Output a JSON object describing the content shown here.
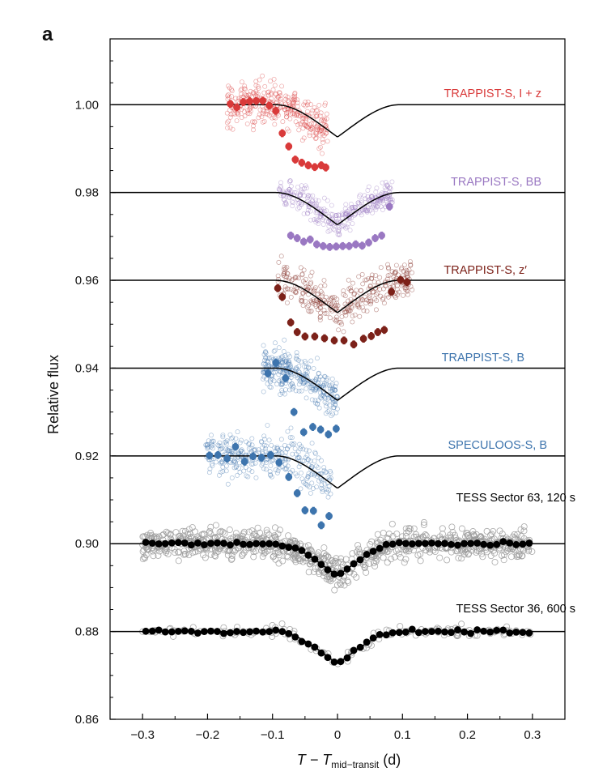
{
  "panel_label": "a",
  "chart_data": {
    "type": "scatter",
    "title": "",
    "xlabel": {
      "prefix": "T − T",
      "subscript": "mid−transit",
      "suffix": " (d)"
    },
    "ylabel": "Relative flux",
    "xlim": [
      -0.35,
      0.35
    ],
    "ylim": [
      0.86,
      1.015
    ],
    "xticks": [
      -0.3,
      -0.2,
      -0.1,
      0,
      0.1,
      0.2,
      0.3
    ],
    "xtick_labels": [
      "−0.3",
      "−0.2",
      "−0.1",
      "0",
      "0.1",
      "0.2",
      "0.3"
    ],
    "yticks": [
      0.86,
      0.88,
      0.9,
      0.92,
      0.94,
      0.96,
      0.98,
      1.0
    ],
    "ytick_labels": [
      "0.86",
      "0.88",
      "0.90",
      "0.92",
      "0.94",
      "0.96",
      "0.98",
      "1.00"
    ],
    "grid": false,
    "transit_model": {
      "t1": -0.095,
      "t2": -0.07,
      "t3": 0.07,
      "t4": 0.095,
      "depth": 0.0135,
      "limb_bow": 0.0015
    },
    "series": [
      {
        "name": "TRAPPIST-S, I + z",
        "color": "#d93a3a",
        "offset": 1.0,
        "raw_xrange": [
          -0.17,
          -0.015
        ],
        "raw_scatter": 0.0035,
        "binned": [
          [
            -0.165,
            1.0002
          ],
          [
            -0.155,
            0.9994
          ],
          [
            -0.145,
            1.0006
          ],
          [
            -0.135,
            1.0008
          ],
          [
            -0.125,
            1.0009
          ],
          [
            -0.115,
            1.0009
          ],
          [
            -0.105,
            0.9998
          ],
          [
            -0.095,
            0.9986
          ],
          [
            -0.085,
            0.9935
          ],
          [
            -0.075,
            0.9905
          ],
          [
            -0.065,
            0.9875
          ],
          [
            -0.055,
            0.9868
          ],
          [
            -0.045,
            0.9862
          ],
          [
            -0.035,
            0.9858
          ],
          [
            -0.025,
            0.9862
          ],
          [
            -0.018,
            0.9857
          ]
        ]
      },
      {
        "name": "TRAPPIST-S, BB",
        "color": "#9a78c2",
        "offset": 0.98,
        "raw_xrange": [
          -0.09,
          0.085
        ],
        "raw_scatter": 0.0022,
        "binned": [
          [
            -0.072,
            0.9702
          ],
          [
            -0.062,
            0.9696
          ],
          [
            -0.052,
            0.9688
          ],
          [
            -0.042,
            0.9693
          ],
          [
            -0.032,
            0.9682
          ],
          [
            -0.022,
            0.9678
          ],
          [
            -0.012,
            0.9676
          ],
          [
            -0.002,
            0.9677
          ],
          [
            0.008,
            0.9678
          ],
          [
            0.018,
            0.9678
          ],
          [
            0.028,
            0.9682
          ],
          [
            0.038,
            0.9679
          ],
          [
            0.048,
            0.9686
          ],
          [
            0.058,
            0.9696
          ],
          [
            0.068,
            0.9702
          ],
          [
            0.08,
            0.9768
          ]
        ]
      },
      {
        "name": "TRAPPIST-S, z′",
        "color": "#7c2119",
        "offset": 0.96,
        "raw_xrange": [
          -0.092,
          0.115
        ],
        "raw_scatter": 0.0032,
        "binned": [
          [
            -0.092,
            0.9582
          ],
          [
            -0.085,
            0.9562
          ],
          [
            -0.072,
            0.9504
          ],
          [
            -0.062,
            0.9482
          ],
          [
            -0.05,
            0.9472
          ],
          [
            -0.035,
            0.9472
          ],
          [
            -0.02,
            0.9468
          ],
          [
            -0.005,
            0.9463
          ],
          [
            0.01,
            0.9463
          ],
          [
            0.025,
            0.9454
          ],
          [
            0.04,
            0.9467
          ],
          [
            0.052,
            0.9473
          ],
          [
            0.062,
            0.9482
          ],
          [
            0.072,
            0.9487
          ],
          [
            0.083,
            0.9574
          ],
          [
            0.097,
            0.9601
          ],
          [
            0.107,
            0.9596
          ]
        ]
      },
      {
        "name": "TRAPPIST-S, B",
        "color": "#3d74ad",
        "offset": 0.94,
        "raw_xrange": [
          -0.115,
          0.0
        ],
        "raw_scatter": 0.0032,
        "binned": [
          [
            -0.107,
            0.9388
          ],
          [
            -0.095,
            0.9412
          ],
          [
            -0.08,
            0.9377
          ],
          [
            -0.067,
            0.93
          ],
          [
            -0.052,
            0.9254
          ],
          [
            -0.038,
            0.9266
          ],
          [
            -0.026,
            0.926
          ],
          [
            -0.014,
            0.9249
          ],
          [
            -0.002,
            0.9262
          ]
        ]
      },
      {
        "name": "SPECULOOS-S, B",
        "color": "#3d74ad",
        "offset": 0.92,
        "raw_xrange": [
          -0.205,
          -0.01
        ],
        "raw_scatter": 0.0035,
        "binned": [
          [
            -0.197,
            0.9201
          ],
          [
            -0.184,
            0.9202
          ],
          [
            -0.17,
            0.9194
          ],
          [
            -0.157,
            0.9221
          ],
          [
            -0.143,
            0.9187
          ],
          [
            -0.13,
            0.9199
          ],
          [
            -0.117,
            0.9196
          ],
          [
            -0.103,
            0.9202
          ],
          [
            -0.09,
            0.9185
          ],
          [
            -0.075,
            0.9152
          ],
          [
            -0.062,
            0.9115
          ],
          [
            -0.05,
            0.9076
          ],
          [
            -0.037,
            0.9075
          ],
          [
            -0.025,
            0.9042
          ],
          [
            -0.013,
            0.9063
          ]
        ]
      },
      {
        "name": "TESS Sector 63, 120 s",
        "color": "#000000",
        "offset": 0.9,
        "raw_xrange": [
          -0.3,
          0.3
        ],
        "raw_scatter": 0.0024,
        "binned_step": 0.01,
        "binned_noise": 0.0003
      },
      {
        "name": "TESS Sector 36, 600 s",
        "color": "#000000",
        "offset": 0.88,
        "raw_xrange": [
          -0.3,
          0.3
        ],
        "raw_scatter": 0.0009,
        "binned_step": 0.01,
        "binned_noise": 0.0003
      }
    ]
  }
}
